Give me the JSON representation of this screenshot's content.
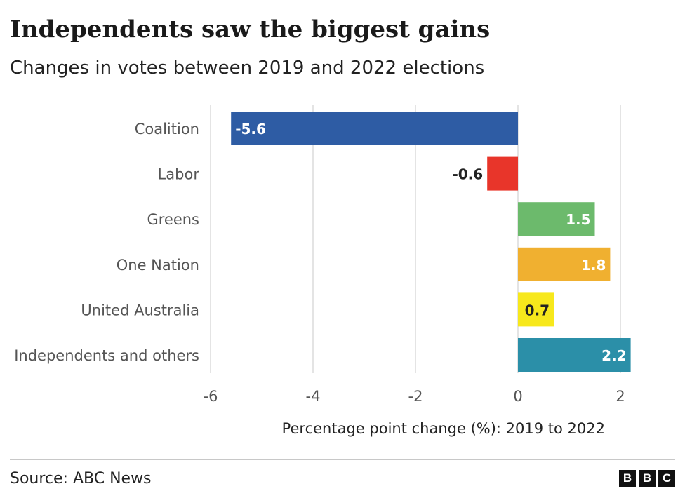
{
  "header": {
    "title": "Independents saw the biggest gains",
    "subtitle": "Changes in votes between 2019 and 2022 elections"
  },
  "chart_data": {
    "type": "bar",
    "orientation": "horizontal",
    "categories": [
      "Coalition",
      "Labor",
      "Greens",
      "One Nation",
      "United Australia",
      "Independents and others"
    ],
    "values": [
      -5.6,
      -0.6,
      1.5,
      1.8,
      0.7,
      2.2
    ],
    "value_labels": [
      "-5.6",
      "-0.6",
      "1.5",
      "1.8",
      "0.7",
      "2.2"
    ],
    "colors": [
      "#2e5ca4",
      "#e8352a",
      "#6cba6c",
      "#f0b030",
      "#f7e81c",
      "#2b8fa8"
    ],
    "label_colors": [
      "#ffffff",
      "#222222",
      "#ffffff",
      "#ffffff",
      "#222222",
      "#ffffff"
    ],
    "xlabel": "Percentage point change (%): 2019 to 2022",
    "ylabel": "",
    "xlim": [
      -6,
      2.2
    ],
    "xticks": [
      -6,
      -4,
      -2,
      0,
      2
    ],
    "xtick_labels": [
      "-6",
      "-4",
      "-2",
      "0",
      "2"
    ],
    "grid": true
  },
  "footer": {
    "source": "Source: ABC News",
    "logo_letters": [
      "B",
      "B",
      "C"
    ]
  }
}
